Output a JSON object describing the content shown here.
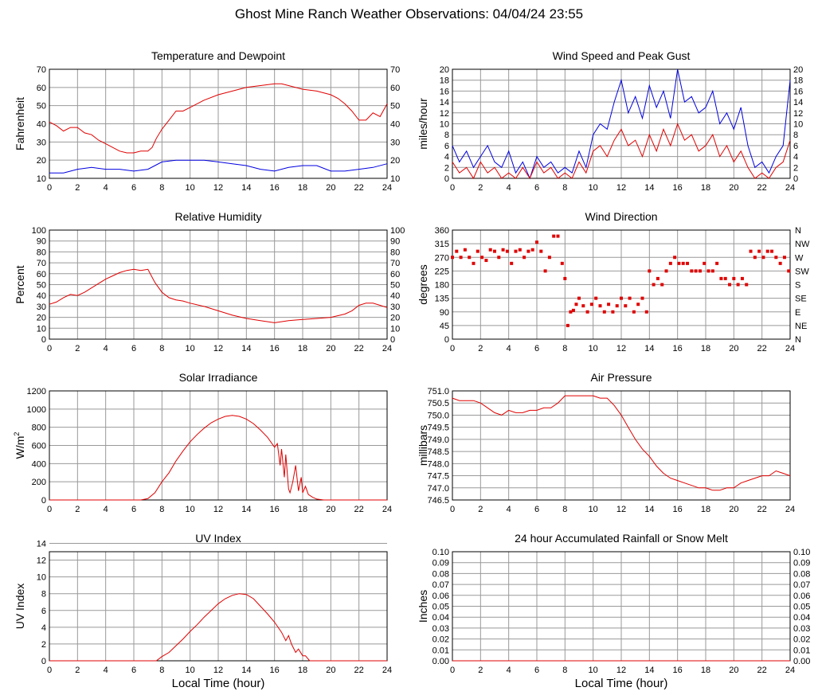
{
  "page": {
    "title": "Ghost Mine Ranch Weather Observations: 04/04/24 23:55",
    "xlabel": "Local Time (hour)"
  },
  "colors": {
    "red": "#e00000",
    "blue": "#0000e0",
    "grid": "#999999"
  },
  "chart_data": [
    {
      "id": "temp",
      "type": "line",
      "title": "Temperature and Dewpoint",
      "ylabel": "Fahrenheit",
      "ylim": [
        10,
        70
      ],
      "ystep": 10,
      "right_axis": true,
      "xlim": [
        0,
        24
      ],
      "xstep": 2,
      "series": [
        {
          "color": "#e00000",
          "x": [
            0,
            0.5,
            1,
            1.5,
            2,
            2.5,
            3,
            3.5,
            4,
            4.5,
            5,
            5.5,
            6,
            6.5,
            7,
            7.3,
            7.6,
            8,
            8.5,
            9,
            9.5,
            10,
            11,
            12,
            13,
            14,
            15,
            16,
            16.5,
            17,
            18,
            19,
            20,
            20.5,
            21,
            21.5,
            22,
            22.5,
            23,
            23.5,
            24
          ],
          "y": [
            41,
            39,
            36,
            38,
            38,
            35,
            34,
            31,
            29,
            27,
            25,
            24,
            24,
            25,
            25,
            27,
            32,
            37,
            42,
            47,
            47,
            49,
            53,
            56,
            58,
            60,
            61,
            62,
            62,
            61,
            59,
            58,
            56,
            54,
            51,
            47,
            42,
            42,
            46,
            44,
            51
          ]
        },
        {
          "color": "#0000e0",
          "x": [
            0,
            1,
            2,
            3,
            4,
            5,
            6,
            7,
            7.5,
            8,
            9,
            10,
            11,
            12,
            13,
            14,
            15,
            16,
            17,
            18,
            19,
            20,
            21,
            22,
            23,
            24
          ],
          "y": [
            13,
            13,
            15,
            16,
            15,
            15,
            14,
            15,
            17,
            19,
            20,
            20,
            20,
            19,
            18,
            17,
            15,
            14,
            16,
            17,
            17,
            14,
            14,
            15,
            16,
            18
          ]
        }
      ]
    },
    {
      "id": "wind",
      "type": "line",
      "title": "Wind Speed and Peak Gust",
      "ylabel": "miles/hour",
      "ylim": [
        0,
        20
      ],
      "ystep": 2,
      "right_axis": true,
      "xlim": [
        0,
        24
      ],
      "xstep": 2,
      "series": [
        {
          "color": "#0000e0",
          "x": [
            0,
            0.5,
            1,
            1.5,
            2,
            2.5,
            3,
            3.5,
            4,
            4.5,
            5,
            5.5,
            6,
            6.5,
            7,
            7.5,
            8,
            8.5,
            9,
            9.5,
            10,
            10.5,
            11,
            11.5,
            12,
            12.5,
            13,
            13.5,
            14,
            14.5,
            15,
            15.5,
            16,
            16.5,
            17,
            17.5,
            18,
            18.5,
            19,
            19.5,
            20,
            20.5,
            21,
            21.5,
            22,
            22.5,
            23,
            23.5,
            24
          ],
          "y": [
            6,
            3,
            5,
            2,
            4,
            6,
            3,
            2,
            5,
            1,
            3,
            0,
            4,
            2,
            3,
            1,
            2,
            1,
            5,
            2,
            8,
            10,
            9,
            14,
            18,
            12,
            15,
            11,
            17,
            13,
            16,
            11,
            20,
            14,
            15,
            12,
            13,
            16,
            10,
            12,
            9,
            13,
            6,
            2,
            3,
            1,
            4,
            6,
            18
          ]
        },
        {
          "color": "#e00000",
          "x": [
            0,
            0.5,
            1,
            1.5,
            2,
            2.5,
            3,
            3.5,
            4,
            4.5,
            5,
            5.5,
            6,
            6.5,
            7,
            7.5,
            8,
            8.5,
            9,
            9.5,
            10,
            10.5,
            11,
            11.5,
            12,
            12.5,
            13,
            13.5,
            14,
            14.5,
            15,
            15.5,
            16,
            16.5,
            17,
            17.5,
            18,
            18.5,
            19,
            19.5,
            20,
            20.5,
            21,
            21.5,
            22,
            22.5,
            23,
            23.5,
            24
          ],
          "y": [
            3,
            1,
            2,
            0,
            3,
            1,
            2,
            0,
            1,
            0,
            2,
            0,
            3,
            1,
            2,
            0,
            1,
            0,
            3,
            1,
            5,
            6,
            4,
            7,
            9,
            6,
            7,
            4,
            8,
            5,
            9,
            6,
            10,
            7,
            8,
            5,
            6,
            8,
            4,
            6,
            3,
            5,
            2,
            0,
            1,
            0,
            2,
            3,
            7
          ]
        }
      ]
    },
    {
      "id": "rh",
      "type": "line",
      "title": "Relative Humidity",
      "ylabel": "Percent",
      "ylim": [
        0,
        100
      ],
      "ystep": 10,
      "right_axis": true,
      "xlim": [
        0,
        24
      ],
      "xstep": 2,
      "series": [
        {
          "color": "#e00000",
          "x": [
            0,
            0.5,
            1,
            1.5,
            2,
            2.5,
            3,
            3.5,
            4,
            4.5,
            5,
            5.5,
            6,
            6.5,
            7,
            7.5,
            8,
            8.5,
            9,
            9.5,
            10,
            11,
            12,
            13,
            14,
            15,
            16,
            17,
            18,
            19,
            20,
            21,
            21.5,
            22,
            22.5,
            23,
            23.5,
            24
          ],
          "y": [
            32,
            34,
            38,
            41,
            40,
            43,
            47,
            51,
            55,
            58,
            61,
            63,
            64,
            63,
            64,
            52,
            43,
            38,
            36,
            35,
            33,
            30,
            26,
            22,
            19,
            17,
            15,
            17,
            18,
            19,
            20,
            23,
            26,
            31,
            33,
            33,
            31,
            29
          ]
        }
      ]
    },
    {
      "id": "wdir",
      "type": "scatter",
      "title": "Wind Direction",
      "ylabel": "degrees",
      "ylim": [
        0,
        360
      ],
      "ystep": 45,
      "right_axis": false,
      "right_labels": [
        "N",
        "NE",
        "E",
        "SE",
        "S",
        "SW",
        "W",
        "NW",
        "N"
      ],
      "xlim": [
        0,
        24
      ],
      "xstep": 2,
      "series": [
        {
          "color": "#e00000",
          "x": [
            0,
            0.3,
            0.6,
            0.9,
            1.2,
            1.5,
            1.8,
            2.1,
            2.4,
            2.7,
            3,
            3.3,
            3.6,
            3.9,
            4.2,
            4.5,
            4.8,
            5.1,
            5.4,
            5.7,
            6,
            6.3,
            6.6,
            6.9,
            7.2,
            7.5,
            7.8,
            8,
            8.2,
            8.4,
            8.6,
            8.8,
            9,
            9.3,
            9.6,
            9.9,
            10.2,
            10.5,
            10.8,
            11.1,
            11.4,
            11.7,
            12,
            12.3,
            12.6,
            12.9,
            13.2,
            13.5,
            13.8,
            14,
            14.3,
            14.6,
            14.9,
            15.2,
            15.5,
            15.8,
            16.1,
            16.4,
            16.7,
            17,
            17.3,
            17.6,
            17.9,
            18.2,
            18.5,
            18.8,
            19.1,
            19.4,
            19.7,
            20,
            20.3,
            20.6,
            20.9,
            21.2,
            21.5,
            21.8,
            22.1,
            22.4,
            22.7,
            23,
            23.3,
            23.6,
            23.9
          ],
          "y": [
            270,
            290,
            270,
            295,
            270,
            250,
            290,
            270,
            260,
            295,
            290,
            270,
            295,
            290,
            250,
            290,
            295,
            270,
            290,
            295,
            320,
            290,
            225,
            270,
            340,
            340,
            250,
            200,
            45,
            90,
            95,
            115,
            135,
            110,
            90,
            115,
            135,
            110,
            90,
            115,
            90,
            110,
            135,
            110,
            135,
            90,
            115,
            135,
            90,
            225,
            180,
            200,
            180,
            225,
            250,
            270,
            250,
            250,
            250,
            225,
            225,
            225,
            250,
            225,
            225,
            250,
            200,
            200,
            180,
            200,
            180,
            200,
            180,
            290,
            270,
            290,
            270,
            290,
            290,
            270,
            250,
            270,
            225
          ]
        }
      ]
    },
    {
      "id": "solar",
      "type": "line",
      "title": "Solar Irradiance",
      "ylabel": "W/m",
      "ylabel_sup": "2",
      "ylim": [
        0,
        1200
      ],
      "ystep": 200,
      "right_axis": false,
      "xlim": [
        0,
        24
      ],
      "xstep": 2,
      "series": [
        {
          "color": "#e00000",
          "x": [
            0,
            6.5,
            7,
            7.5,
            8,
            8.5,
            9,
            9.5,
            10,
            10.5,
            11,
            11.5,
            12,
            12.5,
            13,
            13.5,
            14,
            14.5,
            15,
            15.5,
            16,
            16.2,
            16.4,
            16.5,
            16.7,
            16.8,
            17,
            17.1,
            17.3,
            17.5,
            17.7,
            17.9,
            18,
            18.2,
            18.4,
            18.7,
            19,
            19.5,
            20,
            24
          ],
          "y": [
            0,
            0,
            15,
            80,
            200,
            300,
            430,
            540,
            640,
            720,
            790,
            850,
            890,
            920,
            930,
            920,
            890,
            840,
            770,
            690,
            580,
            620,
            380,
            560,
            250,
            500,
            120,
            80,
            200,
            380,
            100,
            250,
            80,
            150,
            60,
            30,
            10,
            0,
            0,
            0
          ]
        }
      ]
    },
    {
      "id": "pressure",
      "type": "line",
      "title": "Air Pressure",
      "ylabel": "millibars",
      "ylim": [
        746.5,
        751.0
      ],
      "ystep": 0.5,
      "right_axis": false,
      "xlim": [
        0,
        24
      ],
      "xstep": 2,
      "series": [
        {
          "color": "#e00000",
          "x": [
            0,
            0.5,
            1,
            1.5,
            2,
            2.5,
            3,
            3.5,
            4,
            4.5,
            5,
            5.5,
            6,
            6.5,
            7,
            7.5,
            8,
            8.5,
            9,
            9.5,
            10,
            10.5,
            11,
            11.5,
            12,
            12.5,
            13,
            13.5,
            14,
            14.5,
            15,
            15.5,
            16,
            16.5,
            17,
            17.5,
            18,
            18.5,
            19,
            19.5,
            20,
            20.5,
            21,
            21.5,
            22,
            22.5,
            23,
            23.5,
            24
          ],
          "y": [
            750.7,
            750.6,
            750.6,
            750.6,
            750.5,
            750.3,
            750.1,
            750.0,
            750.2,
            750.1,
            750.1,
            750.2,
            750.2,
            750.3,
            750.3,
            750.5,
            750.8,
            750.8,
            750.8,
            750.8,
            750.8,
            750.7,
            750.7,
            750.4,
            750.0,
            749.5,
            749.0,
            748.6,
            748.3,
            747.9,
            747.6,
            747.4,
            747.3,
            747.2,
            747.1,
            747.0,
            747.0,
            746.9,
            746.9,
            747.0,
            747.0,
            747.2,
            747.3,
            747.4,
            747.5,
            747.5,
            747.7,
            747.6,
            747.5
          ]
        }
      ]
    },
    {
      "id": "uv",
      "type": "line",
      "title": "UV Index",
      "ylabel": "UV Index",
      "ylim": [
        0,
        13
      ],
      "ystep": 2,
      "right_axis": false,
      "xlim": [
        0,
        24
      ],
      "xstep": 2,
      "show_xlabel": true,
      "series": [
        {
          "color": "#e00000",
          "x": [
            0,
            7.6,
            8,
            8.5,
            9,
            9.5,
            10,
            10.5,
            11,
            11.5,
            12,
            12.5,
            13,
            13.5,
            14,
            14.5,
            15,
            15.5,
            16,
            16.5,
            16.8,
            17,
            17.2,
            17.5,
            17.7,
            18,
            18.2,
            18.5,
            24
          ],
          "y": [
            0,
            0,
            0.5,
            1,
            1.8,
            2.6,
            3.5,
            4.3,
            5.2,
            6,
            6.8,
            7.4,
            7.8,
            8,
            7.9,
            7.4,
            6.5,
            5.6,
            4.6,
            3.4,
            2.4,
            3,
            2,
            1,
            1.4,
            0.6,
            0.6,
            0,
            0
          ]
        }
      ]
    },
    {
      "id": "rain",
      "type": "line",
      "title": "24 hour Accumulated Rainfall or Snow Melt",
      "ylabel": "Inches",
      "ylim": [
        0,
        0.1
      ],
      "ystep": 0.01,
      "right_axis": true,
      "xlim": [
        0,
        24
      ],
      "xstep": 2,
      "show_xlabel": true,
      "series": [
        {
          "color": "#e00000",
          "x": [
            0,
            24
          ],
          "y": [
            0,
            0
          ]
        }
      ]
    }
  ]
}
